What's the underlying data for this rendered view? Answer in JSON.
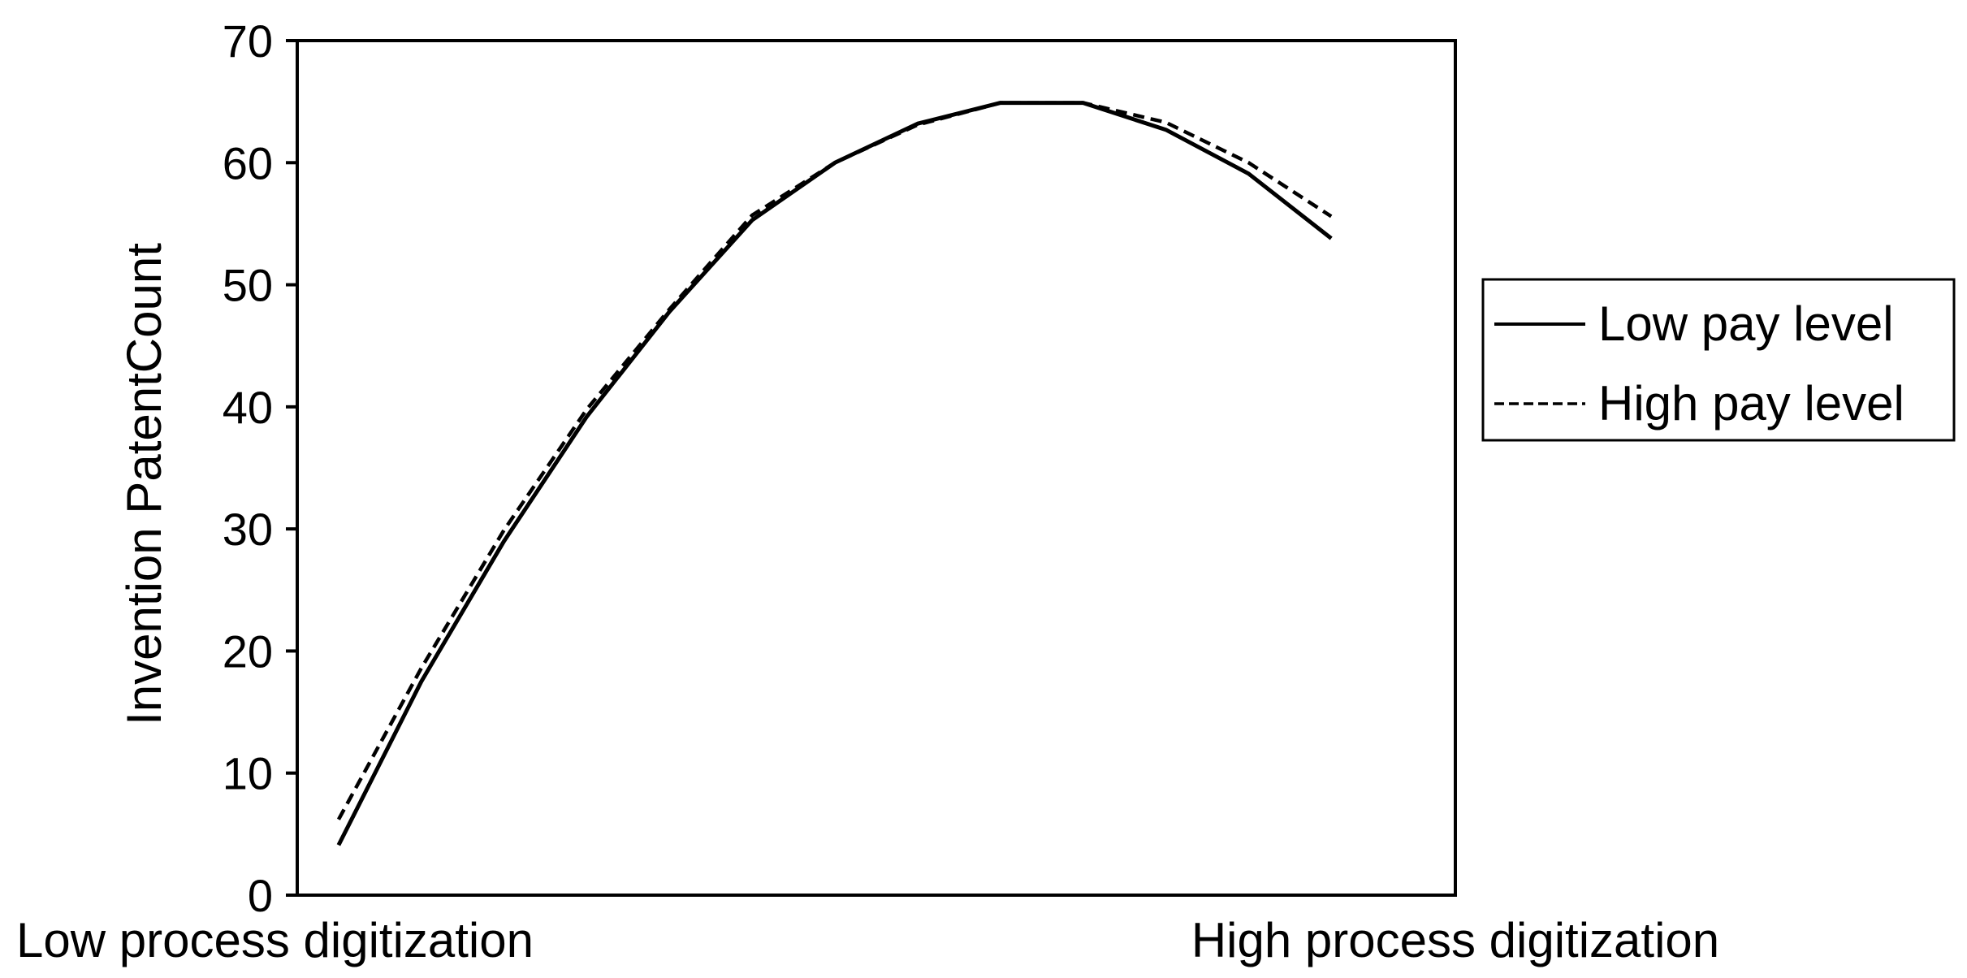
{
  "chart_data": {
    "type": "line",
    "title": "",
    "xlabel": "",
    "ylabel": "Invention PatentCount",
    "x_end_labels": {
      "left": "Low process digitization",
      "right": "High process digitization"
    },
    "ylim": [
      0,
      70
    ],
    "yticks": [
      0,
      10,
      20,
      30,
      40,
      50,
      60,
      70
    ],
    "grid": false,
    "legend_position": "right",
    "x": [
      1,
      2,
      3,
      4,
      5,
      6,
      7,
      8,
      9,
      10,
      11,
      12,
      13,
      14
    ],
    "series": [
      {
        "name": "Low pay level",
        "style": "solid",
        "color": "#000000",
        "values": [
          4.1,
          17.5,
          29.0,
          39.2,
          47.8,
          55.3,
          60.0,
          63.2,
          64.9,
          64.9,
          62.7,
          59.1,
          53.8,
          null
        ]
      },
      {
        "name": "High pay level",
        "style": "dashed",
        "color": "#000000",
        "values": [
          6.2,
          18.6,
          29.9,
          39.8,
          48.0,
          55.7,
          60.0,
          63.1,
          64.9,
          64.9,
          63.3,
          60.0,
          55.6,
          null
        ]
      }
    ]
  }
}
